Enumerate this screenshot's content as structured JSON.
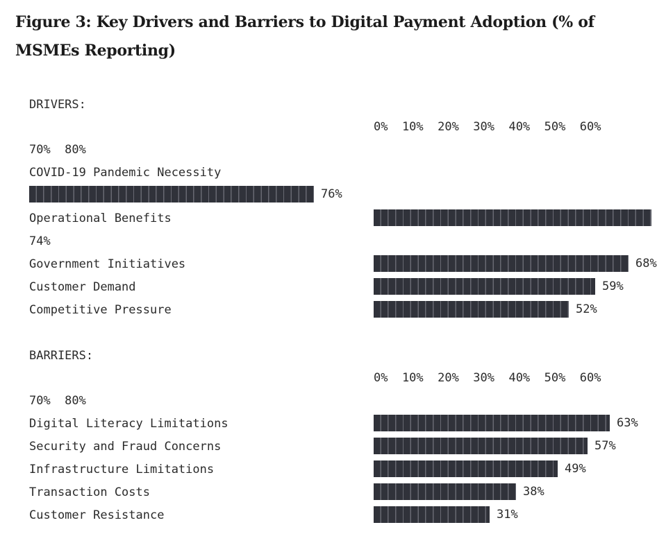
{
  "figure_title": "Figure 3: Key Drivers and Barriers to Digital Payment Adoption (% of MSMEs Reporting)",
  "chart_data": [
    {
      "type": "bar",
      "title": "DRIVERS:",
      "axis_ticks_line1": "0%  10%  20%  30%  40%  50%  60%",
      "axis_ticks_line2": "70%  80%",
      "xlim": [
        0,
        80
      ],
      "unit": "%",
      "categories": [
        "COVID-19 Pandemic Necessity",
        "Operational Benefits",
        "Government Initiatives",
        "Customer Demand",
        "Competitive Pressure"
      ],
      "values": [
        76,
        74,
        68,
        59,
        52
      ],
      "value_labels": [
        "76%",
        "74%",
        "68%",
        "59%",
        "52%"
      ]
    },
    {
      "type": "bar",
      "title": "BARRIERS:",
      "axis_ticks_line1": "0%  10%  20%  30%  40%  50%  60%",
      "axis_ticks_line2": "70%  80%",
      "xlim": [
        0,
        80
      ],
      "unit": "%",
      "categories": [
        "Digital Literacy Limitations",
        "Security and Fraud Concerns",
        "Infrastructure Limitations",
        "Transaction Costs",
        "Customer Resistance"
      ],
      "values": [
        63,
        57,
        49,
        38,
        31
      ],
      "value_labels": [
        "63%",
        "57%",
        "49%",
        "38%",
        "31%"
      ]
    }
  ],
  "colors": {
    "bar": "#30323a",
    "text": "#2b2b2b",
    "title": "#1c1c1c"
  }
}
